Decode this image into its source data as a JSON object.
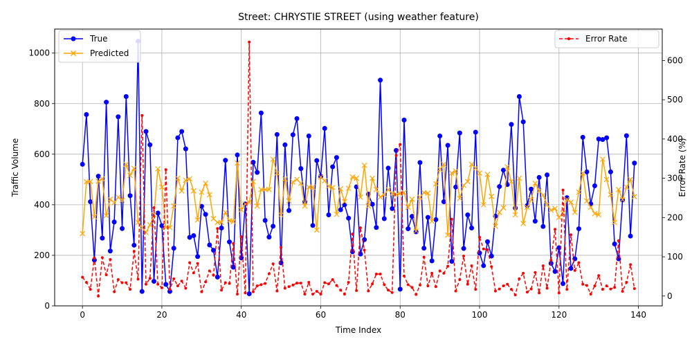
{
  "chart_data": {
    "type": "line",
    "title": "Street: CHRYSTIE STREET (using weather feature)",
    "xlabel": "Time Index",
    "ylabel_left": "Traffic Volume",
    "ylabel_right": "Error Rate (%)",
    "xlim": [
      -7,
      146
    ],
    "ylim_left": [
      0,
      1095
    ],
    "ylim_right": [
      -25,
      680
    ],
    "x_ticks": [
      0,
      20,
      40,
      60,
      80,
      100,
      120,
      140
    ],
    "y_ticks_left": [
      0,
      200,
      400,
      600,
      800,
      1000
    ],
    "y_ticks_right": [
      0,
      100,
      200,
      300,
      400,
      500,
      600
    ],
    "grid": true,
    "legend_left_position": "upper-left",
    "legend_right_position": "upper-right",
    "x": [
      0,
      1,
      2,
      3,
      4,
      5,
      6,
      7,
      8,
      9,
      10,
      11,
      12,
      13,
      14,
      15,
      16,
      17,
      18,
      19,
      20,
      21,
      22,
      23,
      24,
      25,
      26,
      27,
      28,
      29,
      30,
      31,
      32,
      33,
      34,
      35,
      36,
      37,
      38,
      39,
      40,
      41,
      42,
      43,
      44,
      45,
      46,
      47,
      48,
      49,
      50,
      51,
      52,
      53,
      54,
      55,
      56,
      57,
      58,
      59,
      60,
      61,
      62,
      63,
      64,
      65,
      66,
      67,
      68,
      69,
      70,
      71,
      72,
      73,
      74,
      75,
      76,
      77,
      78,
      79,
      80,
      81,
      82,
      83,
      84,
      85,
      86,
      87,
      88,
      89,
      90,
      91,
      92,
      93,
      94,
      95,
      96,
      97,
      98,
      99,
      100,
      101,
      102,
      103,
      104,
      105,
      106,
      107,
      108,
      109,
      110,
      111,
      112,
      113,
      114,
      115,
      116,
      117,
      118,
      119,
      120,
      121,
      122,
      123,
      124,
      125,
      126,
      127,
      128,
      129,
      130,
      131,
      132,
      133,
      134,
      135,
      136,
      137,
      138,
      139
    ],
    "series": [
      {
        "name": "True",
        "axis": "left",
        "color": "#0000ff",
        "marker": "circle",
        "values": [
          560,
          757,
          412,
          181,
          513,
          268,
          806,
          217,
          332,
          748,
          306,
          828,
          436,
          240,
          1047,
          57,
          690,
          637,
          97,
          367,
          317,
          85,
          57,
          228,
          665,
          690,
          621,
          271,
          278,
          195,
          394,
          362,
          241,
          220,
          114,
          308,
          576,
          253,
          153,
          597,
          190,
          403,
          48,
          568,
          528,
          763,
          338,
          272,
          315,
          678,
          170,
          637,
          377,
          677,
          741,
          543,
          412,
          672,
          318,
          575,
          512,
          702,
          360,
          550,
          587,
          380,
          400,
          347,
          214,
          471,
          205,
          262,
          442,
          402,
          310,
          893,
          345,
          545,
          385,
          615,
          66,
          735,
          305,
          354,
          293,
          567,
          228,
          350,
          178,
          341,
          672,
          412,
          635,
          176,
          470,
          684,
          227,
          360,
          308,
          687,
          209,
          159,
          254,
          197,
          355,
          472,
          537,
          480,
          718,
          387,
          828,
          728,
          397,
          462,
          335,
          508,
          314,
          518,
          168,
          136,
          230,
          88,
          428,
          148,
          186,
          305,
          667,
          530,
          404,
          475,
          660,
          658,
          665,
          530,
          245,
          186,
          419,
          673,
          276,
          565
        ]
      },
      {
        "name": "Predicted",
        "axis": "left",
        "color": "#ffa500",
        "marker": "x",
        "values": [
          286,
          491,
          492,
          352,
          493,
          503,
          357,
          422,
          408,
          430,
          418,
          560,
          516,
          544,
          330,
          310,
          290,
          320,
          360,
          542,
          470,
          310,
          310,
          395,
          505,
          455,
          497,
          503,
          455,
          340,
          450,
          485,
          440,
          345,
          330,
          330,
          370,
          337,
          333,
          565,
          380,
          403,
          410,
          492,
          395,
          460,
          460,
          460,
          580,
          525,
          360,
          502,
          415,
          490,
          500,
          485,
          395,
          470,
          470,
          300,
          510,
          495,
          473,
          468,
          362,
          463,
          412,
          465,
          510,
          505,
          430,
          556,
          395,
          505,
          460,
          430,
          440,
          460,
          445,
          440,
          445,
          448,
          390,
          422,
          296,
          430,
          448,
          446,
          335,
          483,
          540,
          560,
          280,
          525,
          533,
          425,
          477,
          492,
          560,
          545,
          525,
          400,
          520,
          433,
          315,
          370,
          388,
          550,
          492,
          360,
          505,
          326,
          390,
          420,
          485,
          455,
          438,
          400,
          378,
          385,
          350,
          367,
          421,
          410,
          370,
          450,
          525,
          415,
          390,
          365,
          360,
          580,
          500,
          440,
          330,
          460,
          420,
          470,
          500,
          432
        ]
      },
      {
        "name": "Error Rate",
        "axis": "right",
        "color": "#ff0000",
        "marker": "dot",
        "values": [
          48,
          35,
          17,
          97,
          0,
          98,
          54,
          93,
          11,
          42,
          34,
          34,
          17,
          114,
          43,
          460,
          30,
          45,
          225,
          30,
          21,
          322,
          17,
          44,
          26,
          38,
          20,
          85,
          59,
          83,
          11,
          36,
          64,
          53,
          172,
          15,
          34,
          32,
          134,
          5,
          151,
          8,
          647,
          11,
          26,
          29,
          32,
          57,
          82,
          13,
          124,
          20,
          24,
          28,
          33,
          33,
          5,
          35,
          5,
          12,
          5,
          34,
          31,
          42,
          27,
          15,
          5,
          35,
          158,
          14,
          174,
          117,
          13,
          31,
          56,
          56,
          29,
          15,
          9,
          358,
          386,
          51,
          29,
          22,
          4,
          28,
          99,
          26,
          58,
          24,
          64,
          58,
          76,
          196,
          13,
          42,
          102,
          30,
          77,
          17,
          150,
          120,
          118,
          75,
          13,
          18,
          26,
          30,
          17,
          3,
          44,
          58,
          10,
          18,
          60,
          8,
          77,
          20,
          91,
          170,
          8,
          270,
          17,
          156,
          65,
          85,
          30,
          27,
          5,
          26,
          52,
          17,
          26,
          18,
          22,
          141,
          12,
          35,
          80,
          19
        ]
      }
    ]
  }
}
